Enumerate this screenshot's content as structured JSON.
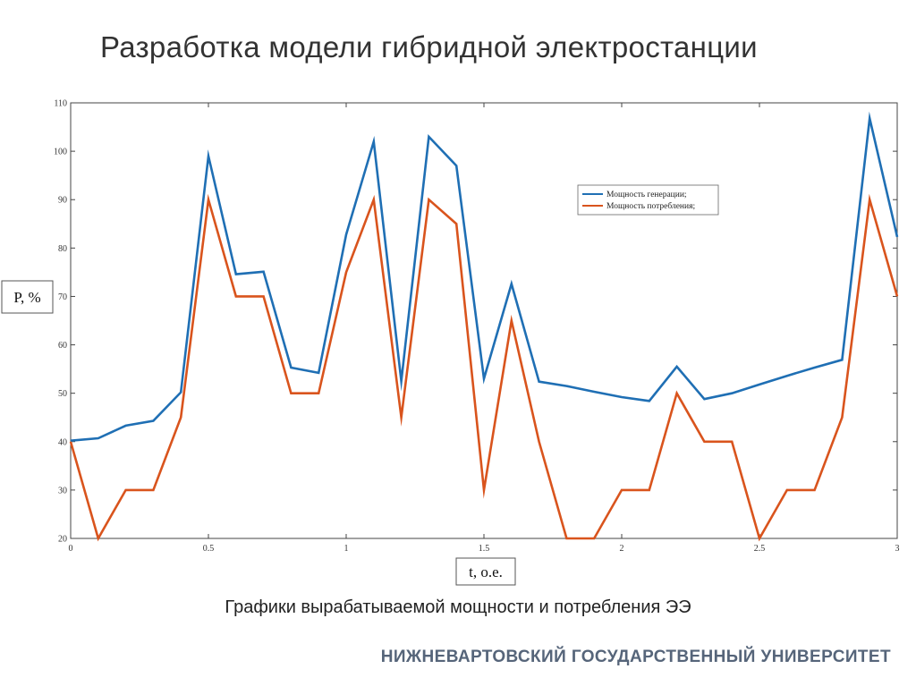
{
  "slide": {
    "title": "Разработка модели гибридной электростанции",
    "caption": "Графики вырабатываемой мощности и потребления ЭЭ",
    "organization": "НИЖНЕВАРТОВСКИЙ ГОСУДАРСТВЕННЫЙ УНИВЕРСИТЕТ"
  },
  "chart_data": {
    "type": "line",
    "xlabel": "t, о.е.",
    "ylabel": "P, %",
    "xlim": [
      0,
      3
    ],
    "ylim": [
      20,
      110
    ],
    "x_ticks": [
      0,
      0.5,
      1,
      1.5,
      2,
      2.5,
      3
    ],
    "x_tick_labels": [
      "0",
      "0.5",
      "1",
      "1.5",
      "2",
      "2.5",
      "3"
    ],
    "y_ticks": [
      20,
      30,
      40,
      50,
      60,
      70,
      80,
      90,
      100,
      110
    ],
    "y_tick_labels": [
      "20",
      "30",
      "40",
      "50",
      "60",
      "70",
      "80",
      "90",
      "100",
      "110"
    ],
    "grid": false,
    "legend_position": "top-right",
    "x": [
      0,
      0.1,
      0.2,
      0.3,
      0.4,
      0.5,
      0.6,
      0.7,
      0.8,
      0.9,
      1.0,
      1.1,
      1.2,
      1.3,
      1.4,
      1.5,
      1.6,
      1.7,
      1.8,
      1.9,
      2.0,
      2.1,
      2.2,
      2.3,
      2.4,
      2.5,
      2.6,
      2.7,
      2.8,
      2.9,
      3.0
    ],
    "series": [
      {
        "name": "Мощность генерации;",
        "color": "#1f6fb4",
        "values": [
          40.2,
          40.7,
          43.3,
          44.3,
          50.2,
          99.0,
          74.6,
          75.1,
          55.3,
          54.2,
          82.8,
          102.0,
          52.5,
          103.0,
          97.0,
          53.0,
          72.6,
          52.4,
          51.5,
          50.3,
          49.2,
          48.4,
          55.5,
          48.8,
          50.0,
          51.8,
          53.6,
          55.3,
          56.9,
          106.8,
          82.3
        ]
      },
      {
        "name": "Мощность потребления;",
        "color": "#d9541d",
        "values": [
          40,
          20,
          30,
          30,
          45,
          90,
          70,
          70,
          50,
          50,
          75,
          90,
          45,
          90,
          85,
          30,
          65,
          40,
          20,
          20,
          30,
          30,
          50,
          40,
          40,
          20,
          30,
          30,
          45,
          90,
          70
        ]
      }
    ]
  }
}
